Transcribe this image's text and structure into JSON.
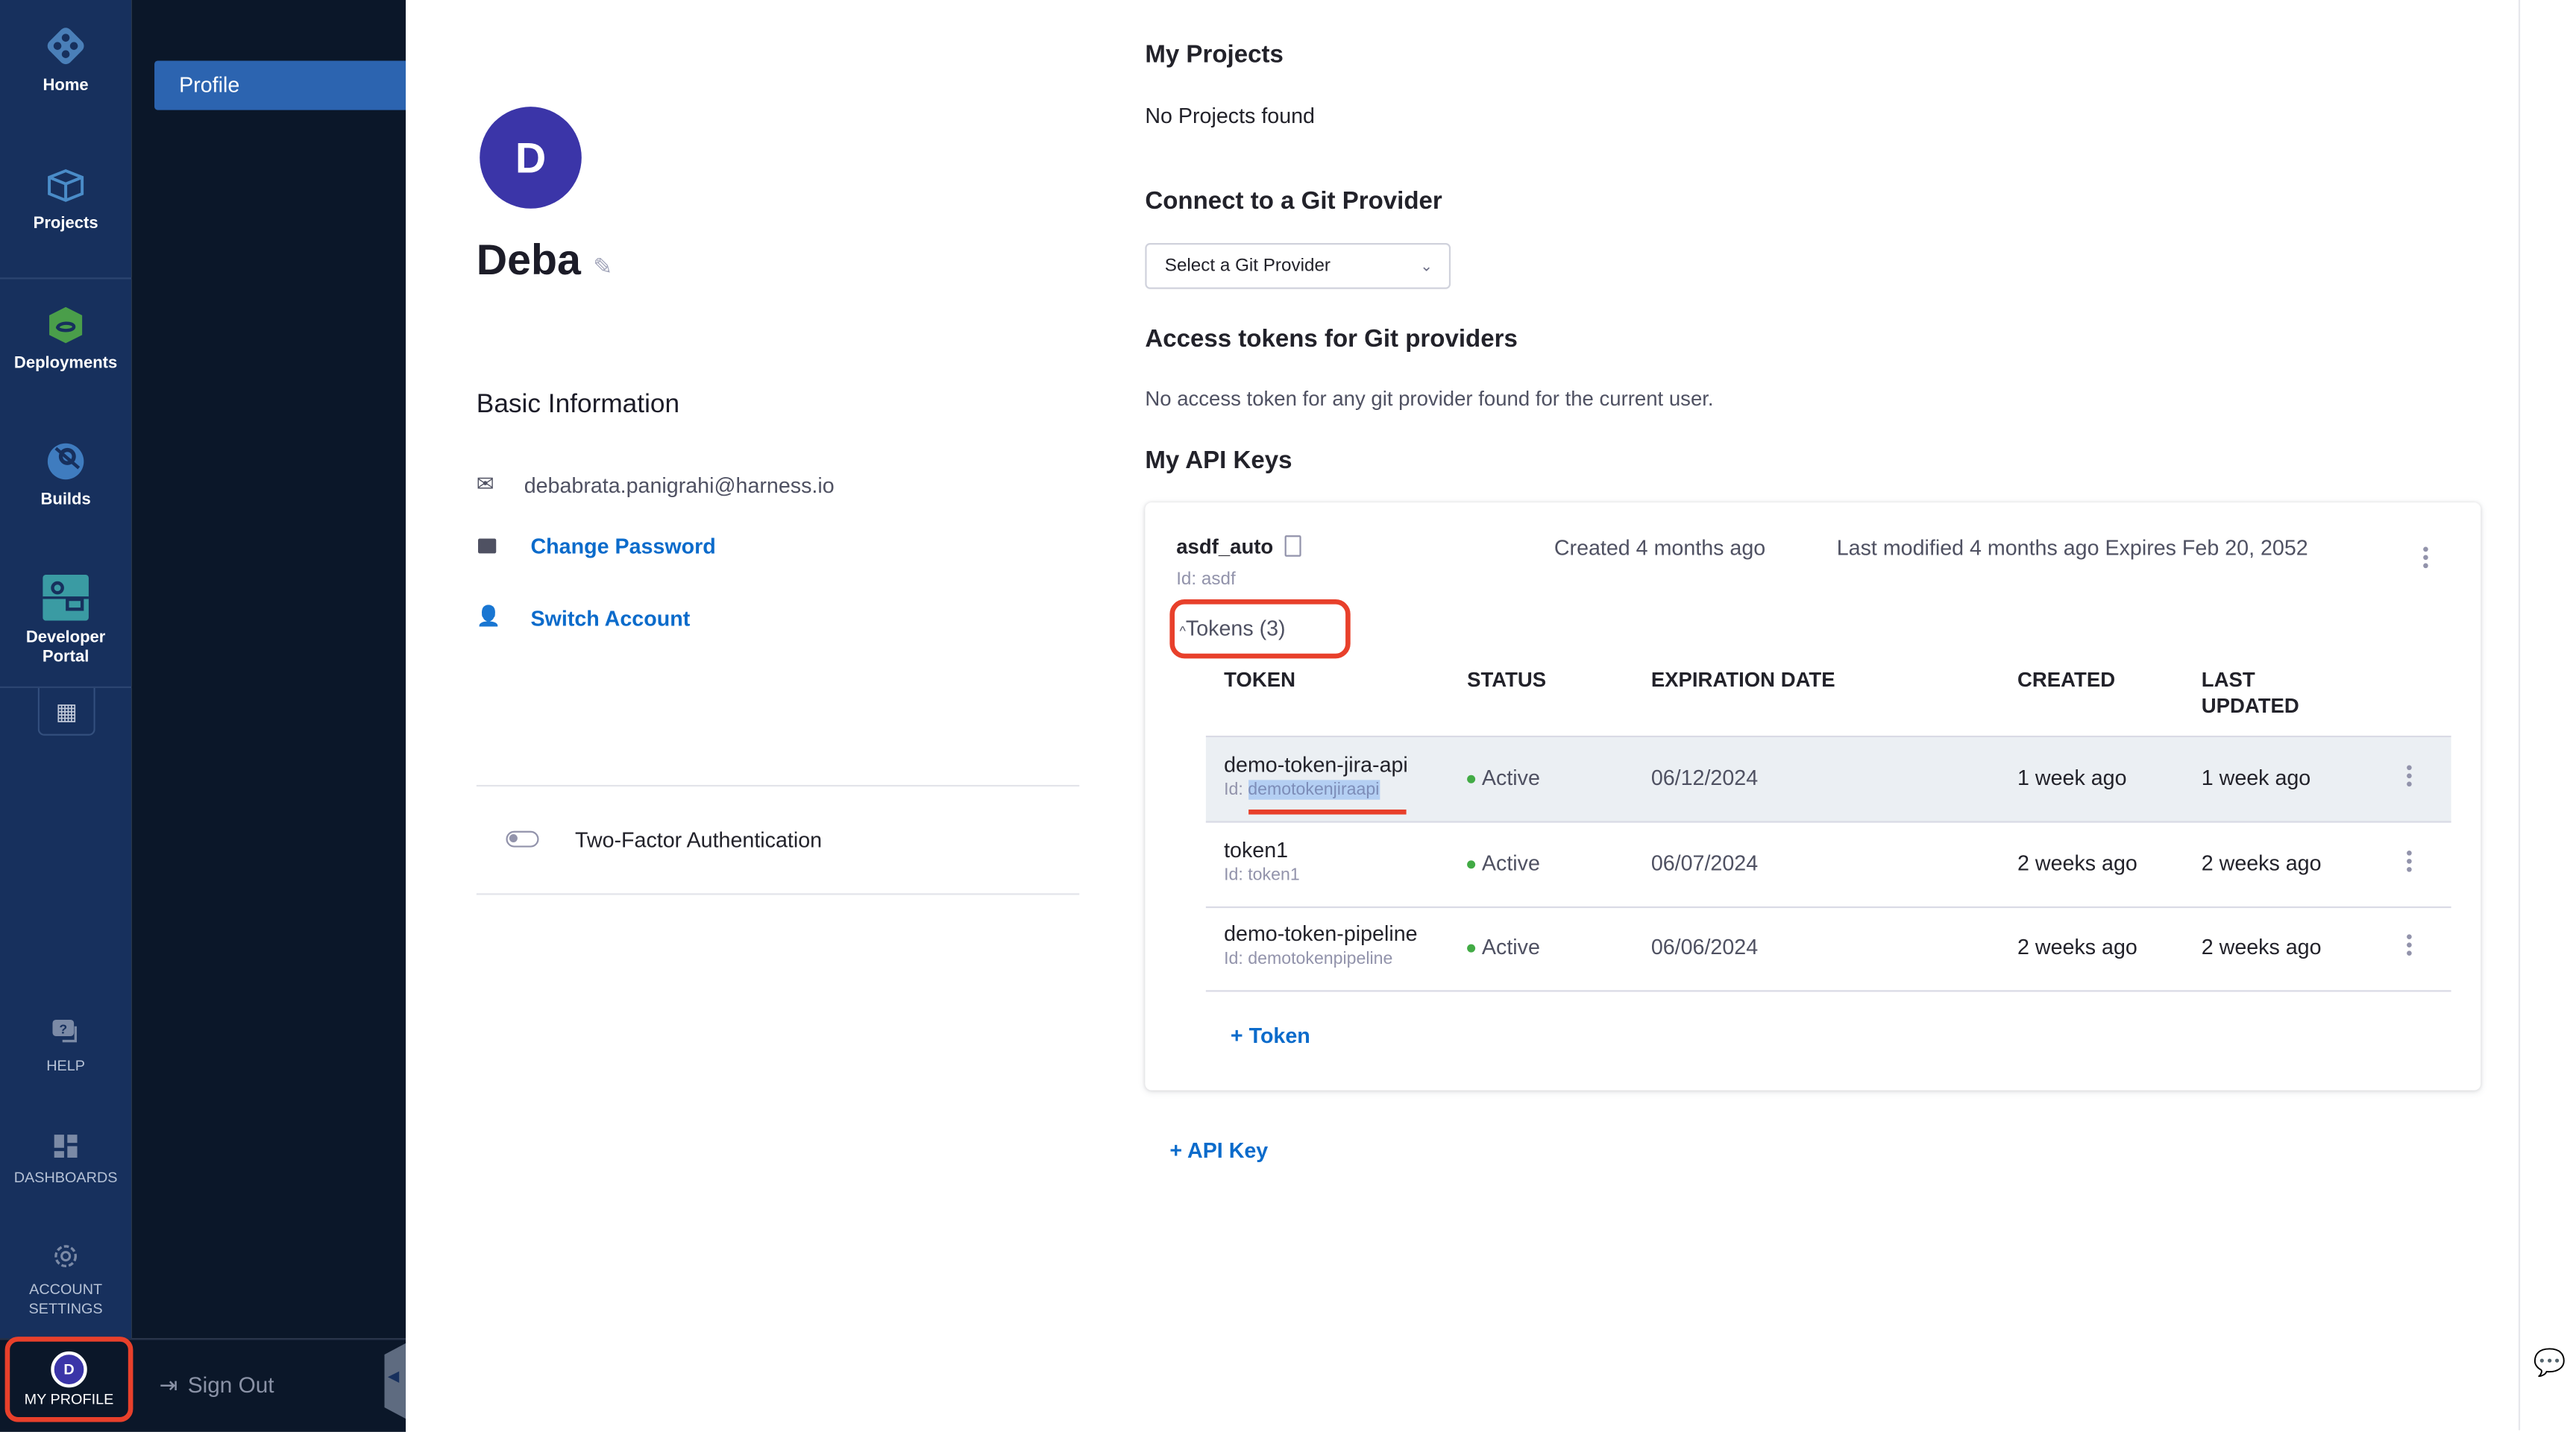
{
  "nav": {
    "items": [
      {
        "label": "Home",
        "icon": "home-icon"
      },
      {
        "label": "Projects",
        "icon": "projects-cube-icon"
      },
      {
        "label": "Deployments",
        "icon": "deployments-icon"
      },
      {
        "label": "Builds",
        "icon": "builds-icon"
      },
      {
        "label": "Developer",
        "label2": "Portal",
        "icon": "developer-portal-icon"
      }
    ],
    "bottom": [
      {
        "label": "HELP",
        "icon": "help-icon"
      },
      {
        "label": "DASHBOARDS",
        "icon": "dashboards-icon"
      },
      {
        "label": "ACCOUNT",
        "label2": "SETTINGS",
        "icon": "gear-icon"
      }
    ],
    "profile": {
      "initial": "D",
      "label": "MY PROFILE"
    }
  },
  "subnav": {
    "active": "Profile",
    "signout": "Sign Out"
  },
  "profile": {
    "initial": "D",
    "name": "Deba",
    "basic_title": "Basic Information",
    "email": "debabrata.panigrahi@harness.io",
    "change_password": "Change Password",
    "switch_account": "Switch Account",
    "two_factor": "Two-Factor Authentication",
    "two_factor_enabled": false
  },
  "projects": {
    "title": "My Projects",
    "empty": "No Projects found"
  },
  "git": {
    "title": "Connect to a Git Provider",
    "select_placeholder": "Select a Git Provider",
    "tokens_title": "Access tokens for Git providers",
    "tokens_empty": "No access token for any git provider found for the current user."
  },
  "api_keys": {
    "title": "My API Keys",
    "key": {
      "name": "asdf_auto",
      "id": "Id: asdf",
      "created": "Created 4 months ago",
      "modified": "Last modified 4 months ago Expires Feb 20, 2052",
      "tokens_toggle": "Tokens (3)",
      "columns": [
        "TOKEN",
        "STATUS",
        "EXPIRATION DATE",
        "CREATED",
        "LAST",
        "UPDATED"
      ],
      "tokens": [
        {
          "name": "demo-token-jira-api",
          "id_label": "Id: ",
          "id": "demotokenjiraapi",
          "status": "Active",
          "expires": "06/12/2024",
          "created": "1 week ago",
          "updated": "1 week ago"
        },
        {
          "name": "token1",
          "id_label": "Id: ",
          "id": "token1",
          "status": "Active",
          "expires": "06/07/2024",
          "created": "2 weeks ago",
          "updated": "2 weeks ago"
        },
        {
          "name": "demo-token-pipeline",
          "id_label": "Id: ",
          "id": "demotokenpipeline",
          "status": "Active",
          "expires": "06/06/2024",
          "created": "2 weeks ago",
          "updated": "2 weeks ago"
        }
      ],
      "add_token": "+ Token"
    },
    "add_key": "+ API Key"
  },
  "colors": {
    "nav": "#17305d",
    "subnav": "#0b1729",
    "accent": "#0b6bcb",
    "avatar": "#3b35a8",
    "active": "#42ab45",
    "highlight": "#e8372a"
  }
}
